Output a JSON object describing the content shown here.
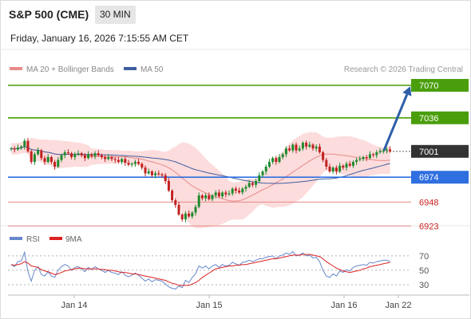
{
  "header": {
    "title": "S&P 500 (CME)",
    "timeframe": "30 MIN",
    "datetime": "Friday, January 16, 2026 7:15:55 AM CET"
  },
  "colors": {
    "ma20": "#e88a8a",
    "ma50": "#3f5ea0",
    "bollinger_band": "#fbd6d6",
    "candle_up": "#1e8a2e",
    "candle_down": "#c22020",
    "green_level": "#4a9e0c",
    "blue_level": "#2f6fe0",
    "red_level": "#e88a8a",
    "current_price": "#333333",
    "arrow": "#2d5ea8",
    "rsi": "#6688cc",
    "rsi_ma": "#dd2222"
  },
  "chart_data": [
    {
      "type": "candlestick",
      "legend": [
        {
          "name": "MA 20 + Bollinger Bands",
          "color": "#e88a8a"
        },
        {
          "name": "MA 50",
          "color": "#3f5ea0"
        }
      ],
      "source": "Research © 2026 Trading Central",
      "x_tick_labels": [
        "Jan 14",
        "Jan 15",
        "Jan 16",
        "Jan 22"
      ],
      "levels": [
        {
          "value": 7070,
          "label": "7070",
          "style": "green"
        },
        {
          "value": 7036,
          "label": "7036",
          "style": "green"
        },
        {
          "value": 7001,
          "label": "7001",
          "style": "current"
        },
        {
          "value": 6974,
          "label": "6974",
          "style": "blue"
        },
        {
          "value": 6948,
          "label": "6948",
          "style": "red"
        },
        {
          "value": 6923,
          "label": "6923",
          "style": "red"
        }
      ],
      "forecast_arrow": {
        "from_price": 7002,
        "to_price": 7069
      },
      "close": [
        7004,
        7003,
        7005,
        7006,
        7012,
        7001,
        6990,
        6998,
        7002,
        6994,
        6990,
        6995,
        6990,
        6985,
        6992,
        6997,
        7000,
        6999,
        6995,
        6998,
        6999,
        6997,
        6994,
        6998,
        6996,
        6999,
        6997,
        6995,
        6993,
        6995,
        6993,
        6992,
        6990,
        6993,
        6989,
        6987,
        6988,
        6990,
        6988,
        6984,
        6978,
        6980,
        6976,
        6978,
        6977,
        6976,
        6970,
        6960,
        6950,
        6945,
        6935,
        6930,
        6936,
        6933,
        6937,
        6943,
        6955,
        6952,
        6955,
        6951,
        6955,
        6958,
        6954,
        6958,
        6956,
        6957,
        6962,
        6960,
        6958,
        6962,
        6964,
        6968,
        6966,
        6970,
        6976,
        6980,
        6985,
        6990,
        6994,
        6990,
        6995,
        6998,
        7004,
        7002,
        7008,
        7002,
        7004,
        7010,
        7006,
        7008,
        7004,
        7006,
        7000,
        6992,
        6985,
        6980,
        6984,
        6980,
        6986,
        6984,
        6988,
        6986,
        6990,
        6992,
        6993,
        6995,
        6994,
        6998,
        6997,
        7000,
        7001,
        7002,
        7003,
        7001
      ],
      "rsi_panel": {
        "legend": [
          {
            "name": "RSI",
            "color": "#6688cc"
          },
          {
            "name": "9MA",
            "color": "#dd2222"
          }
        ],
        "y_ticks": [
          30,
          50,
          70
        ],
        "ylim": [
          20,
          82
        ],
        "rsi": [
          58,
          55,
          62,
          63,
          75,
          48,
          35,
          50,
          55,
          44,
          42,
          48,
          42,
          40,
          50,
          55,
          58,
          56,
          50,
          54,
          55,
          52,
          48,
          54,
          51,
          55,
          52,
          50,
          47,
          50,
          47,
          46,
          44,
          48,
          43,
          41,
          43,
          46,
          43,
          39,
          35,
          38,
          34,
          37,
          36,
          35,
          31,
          27,
          25,
          24,
          28,
          26,
          36,
          33,
          40,
          45,
          56,
          53,
          56,
          52,
          56,
          58,
          54,
          58,
          56,
          57,
          61,
          59,
          57,
          61,
          62,
          64,
          62,
          64,
          66,
          66,
          68,
          69,
          70,
          66,
          70,
          71,
          74,
          72,
          76,
          70,
          71,
          74,
          70,
          71,
          67,
          68,
          62,
          50,
          42,
          40,
          45,
          42,
          49,
          47,
          51,
          49,
          54,
          56,
          57,
          58,
          57,
          61,
          60,
          62,
          63,
          64,
          64,
          62
        ],
        "rsi_ma": [
          58,
          57,
          58,
          59,
          62,
          60,
          56,
          55,
          54,
          51,
          49,
          48,
          46,
          44,
          45,
          47,
          49,
          50,
          51,
          52,
          53,
          53,
          52,
          52,
          52,
          52,
          52,
          51,
          51,
          50,
          50,
          49,
          48,
          47,
          47,
          46,
          45,
          45,
          44,
          43,
          42,
          41,
          40,
          39,
          38,
          37,
          36,
          34,
          32,
          31,
          29,
          29,
          29,
          29,
          31,
          33,
          36,
          40,
          43,
          46,
          49,
          52,
          53,
          54,
          55,
          56,
          56,
          57,
          57,
          58,
          58,
          59,
          60,
          61,
          62,
          63,
          64,
          65,
          66,
          66,
          67,
          68,
          69,
          70,
          71,
          71,
          71,
          72,
          72,
          72,
          71,
          70,
          69,
          66,
          62,
          59,
          56,
          53,
          51,
          49,
          48,
          47,
          48,
          49,
          50,
          52,
          53,
          55,
          56,
          57,
          58,
          59,
          60,
          61
        ]
      }
    }
  ]
}
